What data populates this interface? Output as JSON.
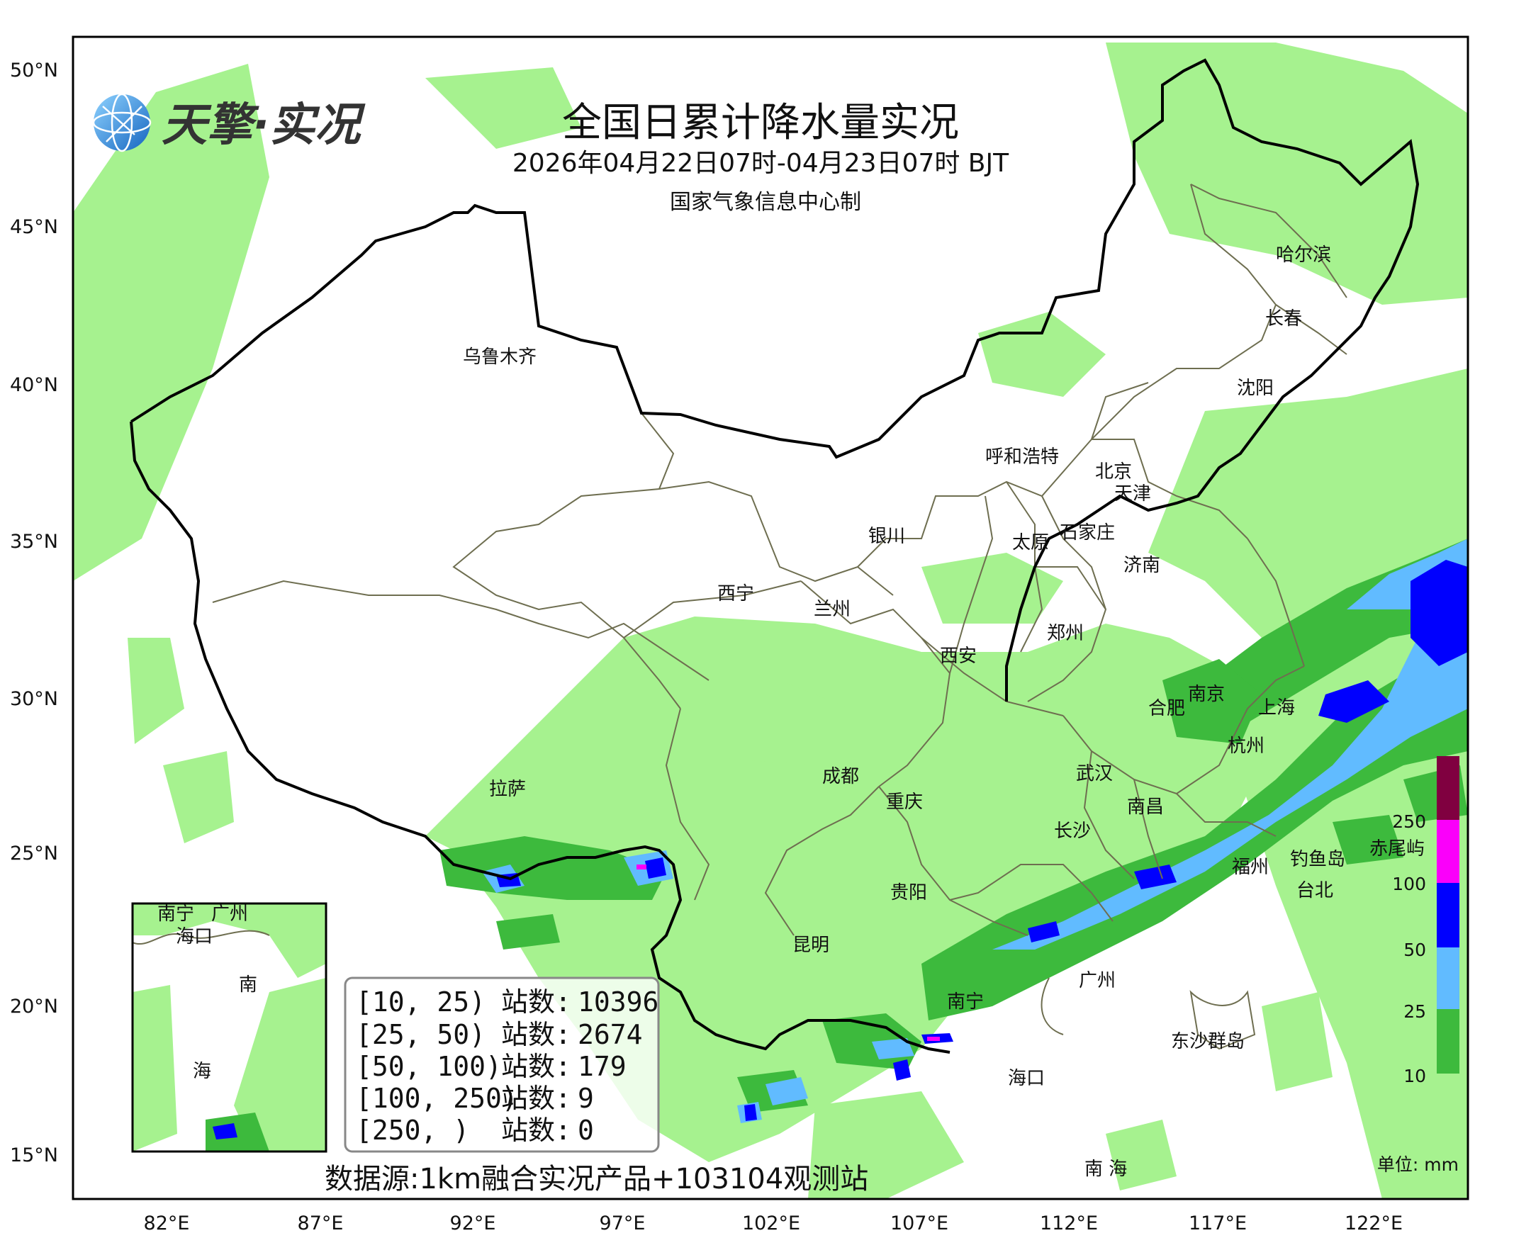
{
  "title": "全国日累计降水量实况",
  "period": "2026年04月22日07时-04月23日07时 BJT",
  "maker": "国家气象信息中心制",
  "logo": {
    "text": "天擎·实况",
    "icon": "globe-network-icon"
  },
  "lat_ticks": [
    "50°N",
    "45°N",
    "40°N",
    "35°N",
    "30°N",
    "25°N",
    "20°N",
    "15°N"
  ],
  "lon_ticks": [
    "82°E",
    "87°E",
    "92°E",
    "97°E",
    "102°E",
    "107°E",
    "112°E",
    "117°E",
    "122°E"
  ],
  "cities": [
    {
      "name": "乌鲁木齐"
    },
    {
      "name": "哈尔滨"
    },
    {
      "name": "长春"
    },
    {
      "name": "沈阳"
    },
    {
      "name": "呼和浩特"
    },
    {
      "name": "北京"
    },
    {
      "name": "天津"
    },
    {
      "name": "银川"
    },
    {
      "name": "太原"
    },
    {
      "name": "石家庄"
    },
    {
      "name": "济南"
    },
    {
      "name": "西宁"
    },
    {
      "name": "兰州"
    },
    {
      "name": "郑州"
    },
    {
      "name": "西安"
    },
    {
      "name": "南京"
    },
    {
      "name": "合肥"
    },
    {
      "name": "上海"
    },
    {
      "name": "杭州"
    },
    {
      "name": "拉萨"
    },
    {
      "name": "成都"
    },
    {
      "name": "武汉"
    },
    {
      "name": "重庆"
    },
    {
      "name": "南昌"
    },
    {
      "name": "长沙"
    },
    {
      "name": "福州"
    },
    {
      "name": "钓鱼岛"
    },
    {
      "name": "赤尾屿"
    },
    {
      "name": "台北"
    },
    {
      "name": "贵阳"
    },
    {
      "name": "昆明"
    },
    {
      "name": "广州"
    },
    {
      "name": "南宁"
    },
    {
      "name": "东沙群岛"
    },
    {
      "name": "海口"
    },
    {
      "name": "南 海"
    }
  ],
  "inset": {
    "labels": [
      "南宁",
      "广州",
      "海口",
      "南",
      "海"
    ]
  },
  "station_stats": [
    {
      "range": "[10, 25)",
      "label": "站数:",
      "count": "10396"
    },
    {
      "range": "[25, 50)",
      "label": "站数:",
      "count": "2674"
    },
    {
      "range": "[50, 100)",
      "label": "站数:",
      "count": "179"
    },
    {
      "range": "[100, 250)",
      "label": "站数:",
      "count": "9"
    },
    {
      "range": "[250, )",
      "label": "站数:",
      "count": "0"
    }
  ],
  "colorbar": {
    "levels": [
      {
        "value": "10",
        "color": "#a6f28f"
      },
      {
        "value": "25",
        "color": "#3dba3d"
      },
      {
        "value": "50",
        "color": "#61bbff"
      },
      {
        "value": "100",
        "color": "#0000fe"
      },
      {
        "value": "250",
        "color": "#fa00fa"
      },
      {
        "value": "",
        "color": "#800040"
      }
    ],
    "unit": "单位: mm"
  },
  "source": "数据源:1km融合实况产品+103104观测站"
}
